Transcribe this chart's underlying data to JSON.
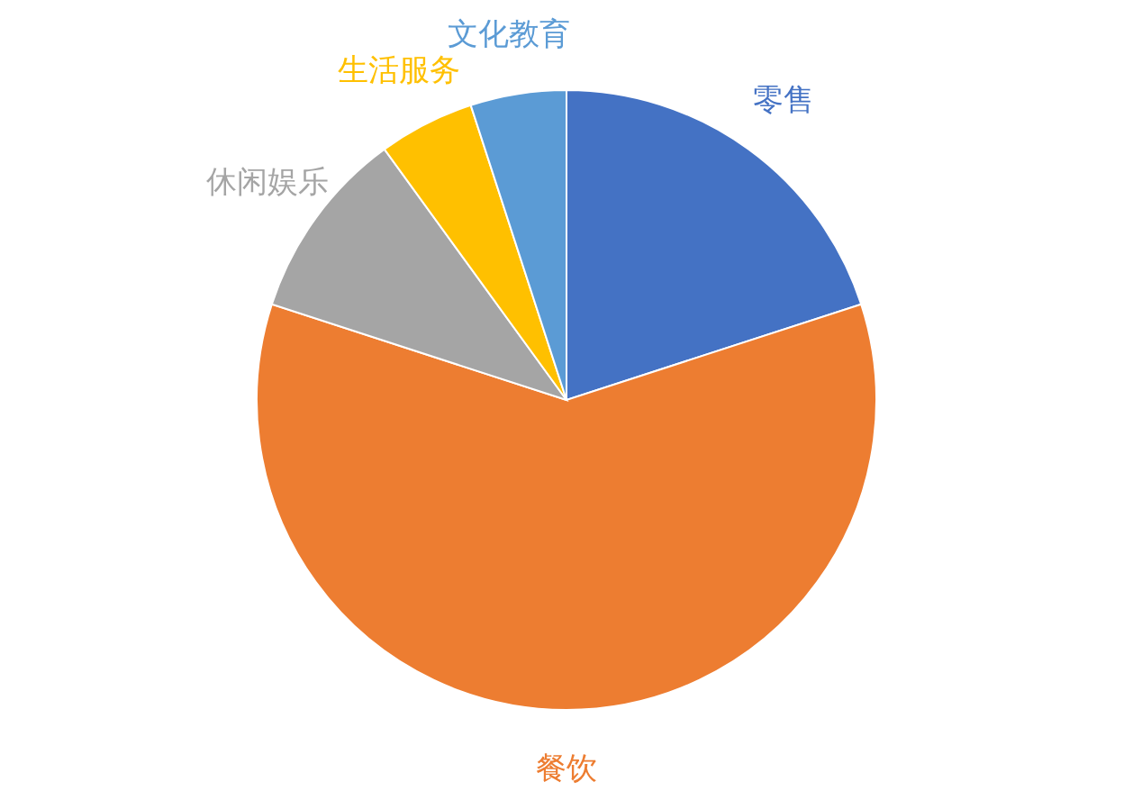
{
  "chart_data": {
    "type": "pie",
    "categories": [
      "零售",
      "餐饮",
      "休闲娱乐",
      "生活服务",
      "文化教育"
    ],
    "values": [
      20,
      60,
      10,
      5,
      5
    ],
    "colors": [
      "#4472c4",
      "#ed7d31",
      "#a5a5a5",
      "#ffc000",
      "#5b9bd5"
    ]
  }
}
